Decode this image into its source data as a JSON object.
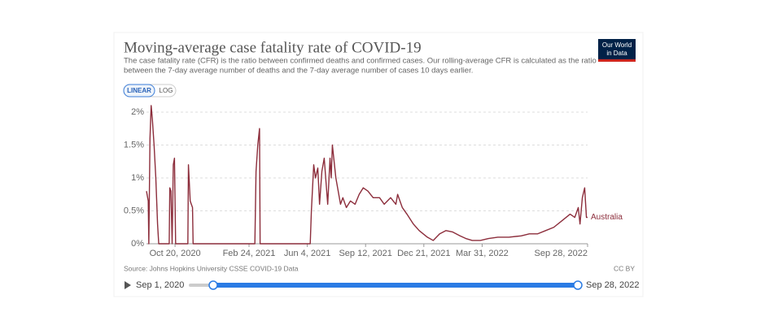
{
  "chart_data": {
    "type": "line",
    "title": "Moving-average case fatality rate of COVID-19",
    "subtitle": [
      "The case fatality rate (CFR) is the ratio between confirmed deaths and confirmed cases. Our rolling-average CFR is calculated as the ratio",
      "between the 7-day average number of deaths and the 7-day average number of cases 10 days earlier."
    ],
    "logo": [
      "Our World",
      "in Data"
    ],
    "scale_buttons": [
      "LINEAR",
      "LOG"
    ],
    "log_scale": false,
    "grid": true,
    "source": "Source: Johns Hopkins University CSSE COVID-19 Data",
    "license": "CC BY",
    "timeline": {
      "start": "Sep 1, 2020",
      "end": "Sep 28, 2022"
    },
    "xlim": [
      "2020-09-01",
      "2022-09-28"
    ],
    "xticks": [
      {
        "value": "2020-10-20",
        "label": "Oct 20, 2020"
      },
      {
        "value": "2021-02-24",
        "label": "Feb 24, 2021"
      },
      {
        "value": "2021-06-04",
        "label": "Jun 4, 2021"
      },
      {
        "value": "2021-09-12",
        "label": "Sep 12, 2021"
      },
      {
        "value": "2021-12-21",
        "label": "Dec 21, 2021"
      },
      {
        "value": "2022-03-31",
        "label": "Mar 31, 2022"
      },
      {
        "value": "2022-09-28",
        "label": "Sep 28, 2022"
      }
    ],
    "ylim": [
      0,
      2
    ],
    "yticks": [
      {
        "value": 0,
        "label": "0%"
      },
      {
        "value": 0.5,
        "label": "0.5%"
      },
      {
        "value": 1,
        "label": "1%"
      },
      {
        "value": 1.5,
        "label": "1.5%"
      },
      {
        "value": 2,
        "label": "2%"
      }
    ],
    "x": [
      "2020-09-01",
      "2020-09-04",
      "2020-09-05",
      "2020-09-07",
      "2020-09-09",
      "2020-09-11",
      "2020-09-14",
      "2020-09-17",
      "2020-09-20",
      "2020-09-22",
      "2020-10-10",
      "2020-10-11",
      "2020-10-13",
      "2020-10-15",
      "2020-10-17",
      "2020-10-19",
      "2020-10-21",
      "2020-11-11",
      "2020-11-12",
      "2020-11-15",
      "2020-11-19",
      "2020-11-20",
      "2021-03-06",
      "2021-03-08",
      "2021-03-11",
      "2021-03-14",
      "2021-03-15",
      "2021-06-09",
      "2021-06-11",
      "2021-06-15",
      "2021-06-18",
      "2021-06-22",
      "2021-06-25",
      "2021-06-29",
      "2021-07-03",
      "2021-07-09",
      "2021-07-13",
      "2021-07-15",
      "2021-07-17",
      "2021-07-23",
      "2021-07-31",
      "2021-08-04",
      "2021-08-10",
      "2021-08-17",
      "2021-08-25",
      "2021-09-01",
      "2021-09-08",
      "2021-09-16",
      "2021-09-25",
      "2021-10-06",
      "2021-10-14",
      "2021-10-25",
      "2021-11-03",
      "2021-11-06",
      "2021-11-14",
      "2021-11-22",
      "2021-12-03",
      "2021-12-13",
      "2021-12-27",
      "2022-01-06",
      "2022-01-17",
      "2022-01-28",
      "2022-02-08",
      "2022-02-21",
      "2022-03-03",
      "2022-03-14",
      "2022-03-28",
      "2022-04-11",
      "2022-04-27",
      "2022-05-16",
      "2022-06-06",
      "2022-06-20",
      "2022-07-04",
      "2022-07-18",
      "2022-08-01",
      "2022-08-15",
      "2022-08-29",
      "2022-09-06",
      "2022-09-12",
      "2022-09-15",
      "2022-09-19",
      "2022-09-23",
      "2022-09-26",
      "2022-09-28"
    ],
    "series": [
      {
        "name": "Australia",
        "color": "#8c2d3b",
        "values": [
          0.8,
          0.65,
          0,
          1.6,
          2.1,
          1.9,
          1.5,
          1.0,
          0.3,
          0,
          0,
          0.85,
          0.8,
          0,
          1.2,
          1.3,
          0,
          0,
          1.2,
          0.65,
          0.55,
          0,
          0,
          1.1,
          1.5,
          1.75,
          0,
          0,
          0.5,
          1.2,
          1.0,
          1.15,
          0.6,
          1.1,
          1.3,
          0.6,
          1.3,
          1.0,
          1.5,
          1.0,
          0.6,
          0.7,
          0.55,
          0.65,
          0.6,
          0.75,
          0.85,
          0.8,
          0.7,
          0.7,
          0.6,
          0.7,
          0.6,
          0.75,
          0.55,
          0.45,
          0.3,
          0.2,
          0.1,
          0.05,
          0.15,
          0.2,
          0.18,
          0.12,
          0.08,
          0.05,
          0.05,
          0.08,
          0.1,
          0.1,
          0.12,
          0.15,
          0.15,
          0.2,
          0.25,
          0.35,
          0.45,
          0.4,
          0.55,
          0.3,
          0.7,
          0.85,
          0.4,
          0.4
        ]
      }
    ]
  }
}
